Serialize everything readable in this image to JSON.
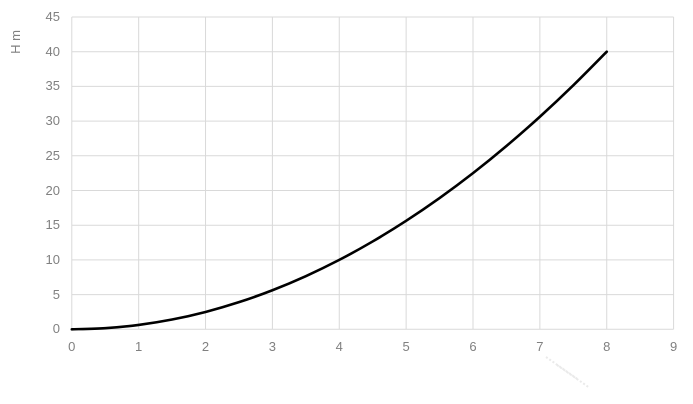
{
  "chart_data": {
    "type": "line",
    "title": "",
    "xlabel": "",
    "ylabel": "H m",
    "xlim": [
      0,
      9
    ],
    "ylim": [
      0,
      45
    ],
    "x_ticks": [
      0,
      1,
      2,
      3,
      4,
      5,
      6,
      7,
      8,
      9
    ],
    "y_ticks": [
      0,
      5,
      10,
      15,
      20,
      25,
      30,
      35,
      40,
      45
    ],
    "grid": true,
    "legend": null,
    "series": [
      {
        "name": "H",
        "x": [
          0,
          0.5,
          1,
          1.5,
          2,
          2.5,
          3,
          3.5,
          4,
          4.5,
          5,
          5.5,
          6,
          6.5,
          7,
          7.5,
          8
        ],
        "y": [
          0,
          0.16,
          0.63,
          1.41,
          2.5,
          3.91,
          5.63,
          7.66,
          10,
          12.66,
          15.63,
          18.91,
          22.5,
          26.41,
          30.63,
          35.16,
          40
        ],
        "color": "#000000",
        "line_width": 2.6
      }
    ],
    "colors": {
      "background": "#ffffff",
      "gridline": "#d9d9d9",
      "tick_label": "#808080",
      "axis_title": "#808080",
      "watermark": "#d9d9d9"
    }
  }
}
